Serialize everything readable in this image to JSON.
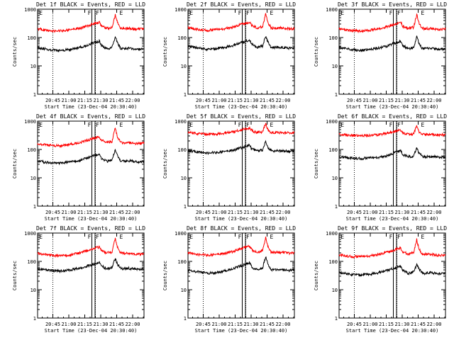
{
  "chart_data": [
    {
      "type": "line",
      "title": "Det 1f BLACK = Events, RED = LLD",
      "xlabel": "Start Time (23-Dec-04 20:30:40)",
      "ylabel": "Counts/sec",
      "yscale": "log",
      "ylim": [
        1,
        1000
      ],
      "ytick_labels": [
        "1",
        "10",
        "100",
        "1000"
      ],
      "xlim": [
        "20:30:40",
        "22:10:00"
      ],
      "xtick_labels": [
        "20:45",
        "21:00",
        "21:15",
        "21:30",
        "21:45",
        "22:00"
      ],
      "markers": [
        "E",
        "F",
        "F",
        "E"
      ],
      "series": [
        {
          "color": "#000000",
          "x_min": [
            0,
            10,
            20,
            30,
            40,
            45,
            50,
            55,
            58,
            60,
            65,
            70,
            73,
            75,
            78,
            80,
            85,
            90,
            95,
            100
          ],
          "y": [
            45,
            38,
            34,
            38,
            45,
            50,
            60,
            68,
            75,
            52,
            40,
            45,
            105,
            65,
            42,
            40,
            42,
            40,
            38,
            40
          ]
        },
        {
          "color": "#ff0000",
          "x_min": [
            0,
            10,
            20,
            30,
            40,
            45,
            50,
            55,
            58,
            60,
            65,
            70,
            73,
            75,
            78,
            80,
            85,
            90,
            95,
            100
          ],
          "y": [
            200,
            175,
            170,
            185,
            215,
            240,
            280,
            320,
            340,
            250,
            210,
            230,
            650,
            330,
            215,
            205,
            210,
            200,
            195,
            200
          ]
        }
      ]
    },
    {
      "type": "line",
      "title": "Det 2f BLACK = Events, RED = LLD",
      "xlabel": "Start Time (23-Dec-04 20:30:40)",
      "ylabel": "Counts/sec",
      "yscale": "log",
      "ylim": [
        1,
        1000
      ],
      "ytick_labels": [
        "1",
        "10",
        "100",
        "1000"
      ],
      "xlim": [
        "20:30:40",
        "22:10:00"
      ],
      "xtick_labels": [
        "20:45",
        "21:00",
        "21:15",
        "21:30",
        "21:45",
        "22:00"
      ],
      "markers": [
        "E",
        "F",
        "F",
        "E"
      ],
      "series": [
        {
          "color": "#000000",
          "x_min": [
            0,
            10,
            20,
            30,
            40,
            45,
            50,
            55,
            58,
            60,
            65,
            70,
            73,
            75,
            78,
            80,
            85,
            90,
            95,
            100
          ],
          "y": [
            50,
            42,
            38,
            42,
            50,
            56,
            66,
            75,
            82,
            58,
            45,
            50,
            115,
            70,
            46,
            44,
            46,
            44,
            42,
            44
          ]
        },
        {
          "color": "#ff0000",
          "x_min": [
            0,
            10,
            20,
            30,
            40,
            45,
            50,
            55,
            58,
            60,
            65,
            70,
            73,
            75,
            78,
            80,
            85,
            90,
            95,
            100
          ],
          "y": [
            220,
            190,
            180,
            195,
            225,
            250,
            290,
            330,
            350,
            260,
            220,
            240,
            680,
            340,
            225,
            215,
            220,
            210,
            205,
            210
          ]
        }
      ]
    },
    {
      "type": "line",
      "title": "Det 3f BLACK = Events, RED = LLD",
      "xlabel": "Start Time (23-Dec-04 20:30:40)",
      "ylabel": "Counts/sec",
      "yscale": "log",
      "ylim": [
        1,
        1000
      ],
      "ytick_labels": [
        "1",
        "10",
        "100",
        "1000"
      ],
      "xlim": [
        "20:30:40",
        "22:10:00"
      ],
      "xtick_labels": [
        "20:45",
        "21:00",
        "21:15",
        "21:30",
        "21:45",
        "22:00"
      ],
      "markers": [
        "E",
        "F",
        "F",
        "E"
      ],
      "series": [
        {
          "color": "#000000",
          "x_min": [
            0,
            10,
            20,
            30,
            40,
            45,
            50,
            55,
            58,
            60,
            65,
            70,
            73,
            75,
            78,
            80,
            85,
            90,
            95,
            100
          ],
          "y": [
            45,
            38,
            34,
            38,
            45,
            50,
            60,
            68,
            75,
            52,
            40,
            45,
            105,
            65,
            42,
            40,
            42,
            40,
            38,
            40
          ]
        },
        {
          "color": "#ff0000",
          "x_min": [
            0,
            10,
            20,
            30,
            40,
            45,
            50,
            55,
            58,
            60,
            65,
            70,
            73,
            75,
            78,
            80,
            85,
            90,
            95,
            100
          ],
          "y": [
            200,
            175,
            170,
            185,
            215,
            240,
            280,
            320,
            340,
            250,
            210,
            230,
            650,
            330,
            215,
            205,
            210,
            200,
            195,
            200
          ]
        }
      ]
    },
    {
      "type": "line",
      "title": "Det 4f BLACK = Events, RED = LLD",
      "xlabel": "Start Time (23-Dec-04 20:30:40)",
      "ylabel": "Counts/sec",
      "yscale": "log",
      "ylim": [
        1,
        1000
      ],
      "ytick_labels": [
        "1",
        "10",
        "100",
        "1000"
      ],
      "xlim": [
        "20:30:40",
        "22:10:00"
      ],
      "xtick_labels": [
        "20:45",
        "21:00",
        "21:15",
        "21:30",
        "21:45",
        "22:00"
      ],
      "markers": [
        "E",
        "F",
        "F",
        "E"
      ],
      "series": [
        {
          "color": "#000000",
          "x_min": [
            0,
            10,
            20,
            30,
            40,
            45,
            50,
            55,
            58,
            60,
            65,
            70,
            73,
            75,
            78,
            80,
            85,
            90,
            95,
            100
          ],
          "y": [
            40,
            34,
            32,
            36,
            42,
            48,
            55,
            62,
            68,
            48,
            38,
            42,
            100,
            60,
            40,
            38,
            40,
            38,
            36,
            38
          ]
        },
        {
          "color": "#ff0000",
          "x_min": [
            0,
            10,
            20,
            30,
            40,
            45,
            50,
            55,
            58,
            60,
            65,
            70,
            73,
            75,
            78,
            80,
            85,
            90,
            95,
            100
          ],
          "y": [
            160,
            140,
            135,
            150,
            175,
            200,
            230,
            260,
            280,
            210,
            175,
            190,
            600,
            280,
            180,
            170,
            175,
            165,
            160,
            165
          ]
        }
      ]
    },
    {
      "type": "line",
      "title": "Det 5f BLACK = Events, RED = LLD",
      "xlabel": "Start Time (23-Dec-04 20:30:40)",
      "ylabel": "Counts/sec",
      "yscale": "log",
      "ylim": [
        1,
        1000
      ],
      "ytick_labels": [
        "1",
        "10",
        "100",
        "1000"
      ],
      "xlim": [
        "20:30:40",
        "22:10:00"
      ],
      "xtick_labels": [
        "20:45",
        "21:00",
        "21:15",
        "21:30",
        "21:45",
        "22:00"
      ],
      "markers": [
        "E",
        "F",
        "F",
        "E"
      ],
      "series": [
        {
          "color": "#000000",
          "x_min": [
            0,
            10,
            20,
            30,
            40,
            45,
            50,
            55,
            58,
            60,
            65,
            70,
            73,
            75,
            78,
            80,
            85,
            90,
            95,
            100
          ],
          "y": [
            90,
            80,
            75,
            80,
            90,
            100,
            115,
            130,
            140,
            105,
            88,
            95,
            200,
            120,
            90,
            88,
            90,
            88,
            85,
            88
          ]
        },
        {
          "color": "#ff0000",
          "x_min": [
            0,
            10,
            20,
            30,
            40,
            45,
            50,
            55,
            58,
            60,
            65,
            70,
            73,
            75,
            78,
            80,
            85,
            90,
            95,
            100
          ],
          "y": [
            400,
            360,
            340,
            360,
            400,
            440,
            490,
            540,
            560,
            460,
            400,
            420,
            800,
            500,
            400,
            390,
            395,
            385,
            380,
            385
          ]
        }
      ]
    },
    {
      "type": "line",
      "title": "Det 6f BLACK = Events, RED = LLD",
      "xlabel": "Start Time (23-Dec-04 20:30:40)",
      "ylabel": "Counts/sec",
      "yscale": "log",
      "ylim": [
        1,
        1000
      ],
      "ytick_labels": [
        "1",
        "10",
        "100",
        "1000"
      ],
      "xlim": [
        "20:30:40",
        "22:10:00"
      ],
      "xtick_labels": [
        "20:45",
        "21:00",
        "21:15",
        "21:30",
        "21:45",
        "22:00"
      ],
      "markers": [
        "E",
        "F",
        "F",
        "E"
      ],
      "series": [
        {
          "color": "#000000",
          "x_min": [
            0,
            10,
            20,
            30,
            40,
            45,
            50,
            55,
            58,
            60,
            65,
            70,
            73,
            75,
            78,
            80,
            85,
            90,
            95,
            100
          ],
          "y": [
            55,
            50,
            48,
            50,
            55,
            60,
            70,
            85,
            95,
            65,
            55,
            58,
            120,
            75,
            58,
            55,
            57,
            55,
            53,
            55
          ]
        },
        {
          "color": "#ff0000",
          "x_min": [
            0,
            10,
            20,
            30,
            40,
            45,
            50,
            55,
            58,
            60,
            65,
            70,
            73,
            75,
            78,
            80,
            85,
            90,
            95,
            100
          ],
          "y": [
            340,
            310,
            300,
            315,
            345,
            380,
            420,
            460,
            480,
            390,
            340,
            360,
            650,
            420,
            345,
            335,
            340,
            330,
            325,
            330
          ]
        }
      ]
    },
    {
      "type": "line",
      "title": "Det 7f BLACK = Events, RED = LLD",
      "xlabel": "Start Time (23-Dec-04 20:30:40)",
      "ylabel": "Counts/sec",
      "yscale": "log",
      "ylim": [
        1,
        1000
      ],
      "ytick_labels": [
        "1",
        "10",
        "100",
        "1000"
      ],
      "xlim": [
        "20:30:40",
        "22:10:00"
      ],
      "xtick_labels": [
        "20:45",
        "21:00",
        "21:15",
        "21:30",
        "21:45",
        "22:00"
      ],
      "markers": [
        "E",
        "F",
        "F",
        "E"
      ],
      "series": [
        {
          "color": "#000000",
          "x_min": [
            0,
            10,
            20,
            30,
            40,
            45,
            50,
            55,
            58,
            60,
            65,
            70,
            73,
            75,
            78,
            80,
            85,
            90,
            95,
            100
          ],
          "y": [
            55,
            48,
            45,
            50,
            58,
            65,
            75,
            85,
            95,
            68,
            55,
            60,
            130,
            80,
            58,
            55,
            57,
            55,
            53,
            55
          ]
        },
        {
          "color": "#ff0000",
          "x_min": [
            0,
            10,
            20,
            30,
            40,
            45,
            50,
            55,
            58,
            60,
            65,
            70,
            73,
            75,
            78,
            80,
            85,
            90,
            95,
            100
          ],
          "y": [
            190,
            165,
            155,
            170,
            200,
            225,
            260,
            300,
            320,
            240,
            200,
            215,
            650,
            320,
            200,
            190,
            195,
            185,
            180,
            185
          ]
        }
      ]
    },
    {
      "type": "line",
      "title": "Det 8f BLACK = Events, RED = LLD",
      "xlabel": "Start Time (23-Dec-04 20:30:40)",
      "ylabel": "Counts/sec",
      "yscale": "log",
      "ylim": [
        1,
        1000
      ],
      "ytick_labels": [
        "1",
        "10",
        "100",
        "1000"
      ],
      "xlim": [
        "20:30:40",
        "22:10:00"
      ],
      "xtick_labels": [
        "20:45",
        "21:00",
        "21:15",
        "21:30",
        "21:45",
        "22:00"
      ],
      "markers": [
        "E",
        "F",
        "F",
        "E"
      ],
      "series": [
        {
          "color": "#000000",
          "x_min": [
            0,
            10,
            20,
            30,
            40,
            45,
            50,
            55,
            58,
            60,
            65,
            70,
            73,
            75,
            78,
            80,
            85,
            90,
            95,
            100
          ],
          "y": [
            50,
            42,
            38,
            42,
            52,
            60,
            70,
            80,
            90,
            62,
            50,
            55,
            150,
            80,
            52,
            50,
            52,
            50,
            48,
            50
          ]
        },
        {
          "color": "#ff0000",
          "x_min": [
            0,
            10,
            20,
            30,
            40,
            45,
            50,
            55,
            58,
            60,
            65,
            70,
            73,
            75,
            78,
            80,
            85,
            90,
            95,
            100
          ],
          "y": [
            200,
            175,
            165,
            180,
            210,
            240,
            280,
            320,
            340,
            255,
            210,
            230,
            700,
            340,
            215,
            205,
            210,
            200,
            195,
            200
          ]
        }
      ]
    },
    {
      "type": "line",
      "title": "Det 9f BLACK = Events, RED = LLD",
      "xlabel": "Start Time (23-Dec-04 20:30:40)",
      "ylabel": "Counts/sec",
      "yscale": "log",
      "ylim": [
        1,
        1000
      ],
      "ytick_labels": [
        "1",
        "10",
        "100",
        "1000"
      ],
      "xlim": [
        "20:30:40",
        "22:10:00"
      ],
      "xtick_labels": [
        "20:45",
        "21:00",
        "21:15",
        "21:30",
        "21:45",
        "22:00"
      ],
      "markers": [
        "E",
        "F",
        "F",
        "E"
      ],
      "series": [
        {
          "color": "#000000",
          "x_min": [
            0,
            10,
            20,
            30,
            40,
            45,
            50,
            55,
            58,
            60,
            65,
            70,
            73,
            75,
            78,
            80,
            85,
            90,
            95,
            100
          ],
          "y": [
            40,
            35,
            33,
            36,
            42,
            48,
            55,
            62,
            68,
            48,
            38,
            42,
            80,
            55,
            40,
            38,
            40,
            38,
            36,
            38
          ]
        },
        {
          "color": "#ff0000",
          "x_min": [
            0,
            10,
            20,
            30,
            40,
            45,
            50,
            55,
            58,
            60,
            65,
            70,
            73,
            75,
            78,
            80,
            85,
            90,
            95,
            100
          ],
          "y": [
            170,
            150,
            145,
            160,
            185,
            210,
            240,
            275,
            290,
            220,
            180,
            200,
            600,
            280,
            185,
            175,
            180,
            170,
            165,
            170
          ]
        }
      ]
    }
  ]
}
